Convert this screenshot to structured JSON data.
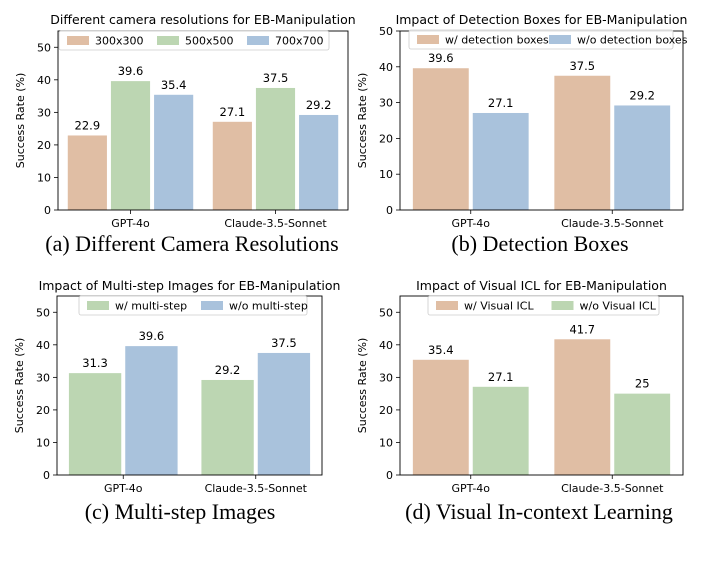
{
  "colors": {
    "peach": "#e0bea4",
    "green": "#bcd6b2",
    "blue": "#a9c2dc"
  },
  "chart_data": [
    {
      "type": "bar",
      "title": "Different camera resolutions for EB-Manipulation",
      "caption": "(a) Different Camera Resolutions",
      "categories": [
        "GPT-4o",
        "Claude-3.5-Sonnet"
      ],
      "series": [
        {
          "name": "300x300",
          "values": [
            22.9,
            27.1
          ],
          "color": "#e0bea4"
        },
        {
          "name": "500x500",
          "values": [
            39.6,
            37.5
          ],
          "color": "#bcd6b2"
        },
        {
          "name": "700x700",
          "values": [
            35.4,
            29.2
          ],
          "color": "#a9c2dc"
        }
      ],
      "xlabel": "",
      "ylabel": "Success Rate (%)",
      "ylim": [
        0,
        55
      ],
      "yticks": [
        0,
        10,
        20,
        30,
        40,
        50
      ],
      "legend": "top, 3 columns"
    },
    {
      "type": "bar",
      "title": "Impact of Detection Boxes for EB-Manipulation",
      "caption": "(b) Detection Boxes",
      "categories": [
        "GPT-4o",
        "Claude-3.5-Sonnet"
      ],
      "series": [
        {
          "name": "w/ detection boxes",
          "values": [
            39.6,
            37.5
          ],
          "color": "#e0bea4"
        },
        {
          "name": "w/o detection boxes",
          "values": [
            27.1,
            29.2
          ],
          "color": "#a9c2dc"
        }
      ],
      "xlabel": "",
      "ylabel": "Success Rate (%)",
      "ylim": [
        0,
        50
      ],
      "yticks": [
        0,
        10,
        20,
        30,
        40,
        50
      ],
      "legend": "top, 2 columns"
    },
    {
      "type": "bar",
      "title": "Impact of Multi-step Images for EB-Manipulation",
      "caption": "(c) Multi-step Images",
      "categories": [
        "GPT-4o",
        "Claude-3.5-Sonnet"
      ],
      "series": [
        {
          "name": "w/ multi-step",
          "values": [
            31.3,
            29.2
          ],
          "color": "#bcd6b2"
        },
        {
          "name": "w/o multi-step",
          "values": [
            39.6,
            37.5
          ],
          "color": "#a9c2dc"
        }
      ],
      "xlabel": "",
      "ylabel": "Success Rate (%)",
      "ylim": [
        0,
        55
      ],
      "yticks": [
        0,
        10,
        20,
        30,
        40,
        50
      ],
      "legend": "top, 2 columns"
    },
    {
      "type": "bar",
      "title": "Impact of Visual ICL for EB-Manipulation",
      "caption": "(d) Visual In-context Learning",
      "categories": [
        "GPT-4o",
        "Claude-3.5-Sonnet"
      ],
      "series": [
        {
          "name": "w/ Visual ICL",
          "values": [
            35.4,
            41.7
          ],
          "color": "#e0bea4"
        },
        {
          "name": "w/o Visual ICL",
          "values": [
            27.1,
            25.0
          ],
          "color": "#bcd6b2"
        }
      ],
      "xlabel": "",
      "ylabel": "Success Rate (%)",
      "ylim": [
        0,
        55
      ],
      "yticks": [
        0,
        10,
        20,
        30,
        40,
        50
      ],
      "legend": "top, 2 columns"
    }
  ]
}
